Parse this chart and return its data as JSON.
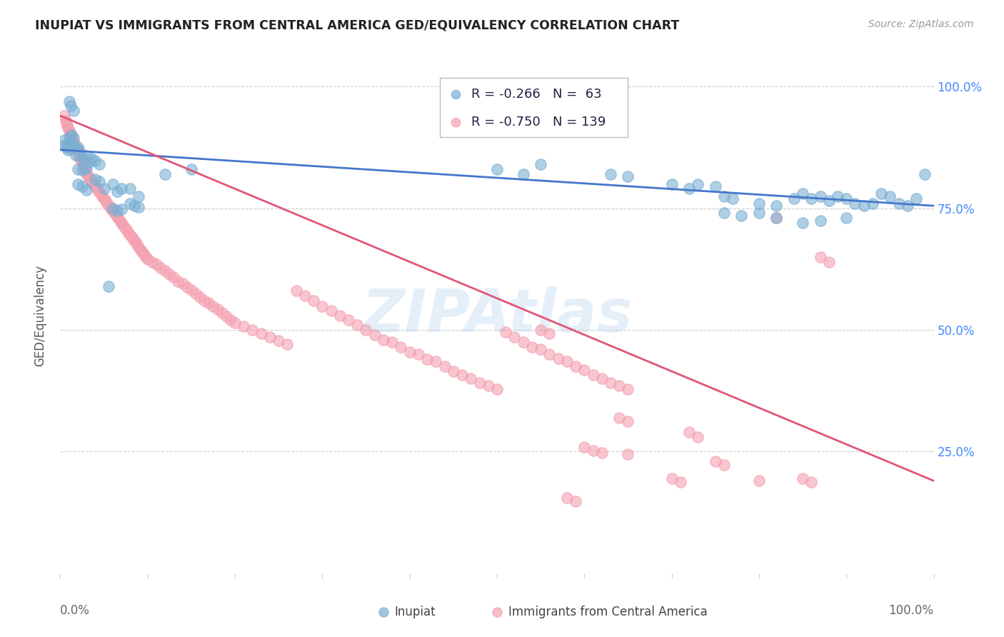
{
  "title": "INUPIAT VS IMMIGRANTS FROM CENTRAL AMERICA GED/EQUIVALENCY CORRELATION CHART",
  "source": "Source: ZipAtlas.com",
  "ylabel": "GED/Equivalency",
  "ytick_labels": [
    "100.0%",
    "75.0%",
    "50.0%",
    "25.0%"
  ],
  "ytick_positions": [
    1.0,
    0.75,
    0.5,
    0.25
  ],
  "legend_blue_R": "-0.266",
  "legend_blue_N": "63",
  "legend_pink_R": "-0.750",
  "legend_pink_N": "139",
  "blue_color": "#7bafd4",
  "pink_color": "#f4a0b0",
  "blue_line_color": "#4477cc",
  "pink_line_color": "#e05575",
  "watermark": "ZIPAtlas",
  "blue_scatter": [
    [
      0.01,
      0.97
    ],
    [
      0.012,
      0.96
    ],
    [
      0.015,
      0.95
    ],
    [
      0.005,
      0.89
    ],
    [
      0.008,
      0.88
    ],
    [
      0.01,
      0.895
    ],
    [
      0.013,
      0.9
    ],
    [
      0.015,
      0.895
    ],
    [
      0.005,
      0.88
    ],
    [
      0.007,
      0.875
    ],
    [
      0.009,
      0.87
    ],
    [
      0.011,
      0.872
    ],
    [
      0.014,
      0.88
    ],
    [
      0.016,
      0.878
    ],
    [
      0.018,
      0.86
    ],
    [
      0.02,
      0.875
    ],
    [
      0.022,
      0.868
    ],
    [
      0.025,
      0.855
    ],
    [
      0.027,
      0.85
    ],
    [
      0.03,
      0.858
    ],
    [
      0.033,
      0.845
    ],
    [
      0.036,
      0.852
    ],
    [
      0.04,
      0.848
    ],
    [
      0.045,
      0.84
    ],
    [
      0.02,
      0.83
    ],
    [
      0.025,
      0.828
    ],
    [
      0.03,
      0.832
    ],
    [
      0.02,
      0.8
    ],
    [
      0.025,
      0.795
    ],
    [
      0.03,
      0.788
    ],
    [
      0.04,
      0.81
    ],
    [
      0.045,
      0.805
    ],
    [
      0.05,
      0.79
    ],
    [
      0.06,
      0.8
    ],
    [
      0.065,
      0.785
    ],
    [
      0.07,
      0.79
    ],
    [
      0.08,
      0.79
    ],
    [
      0.09,
      0.775
    ],
    [
      0.12,
      0.82
    ],
    [
      0.15,
      0.83
    ],
    [
      0.06,
      0.75
    ],
    [
      0.065,
      0.745
    ],
    [
      0.07,
      0.748
    ],
    [
      0.08,
      0.76
    ],
    [
      0.085,
      0.755
    ],
    [
      0.09,
      0.752
    ],
    [
      0.055,
      0.59
    ],
    [
      0.5,
      0.83
    ],
    [
      0.53,
      0.82
    ],
    [
      0.55,
      0.84
    ],
    [
      0.63,
      0.82
    ],
    [
      0.65,
      0.815
    ],
    [
      0.7,
      0.8
    ],
    [
      0.72,
      0.79
    ],
    [
      0.73,
      0.8
    ],
    [
      0.75,
      0.795
    ],
    [
      0.76,
      0.775
    ],
    [
      0.77,
      0.77
    ],
    [
      0.8,
      0.76
    ],
    [
      0.82,
      0.755
    ],
    [
      0.84,
      0.77
    ],
    [
      0.85,
      0.78
    ],
    [
      0.86,
      0.77
    ],
    [
      0.87,
      0.775
    ],
    [
      0.88,
      0.765
    ],
    [
      0.89,
      0.775
    ],
    [
      0.9,
      0.77
    ],
    [
      0.91,
      0.76
    ],
    [
      0.92,
      0.755
    ],
    [
      0.93,
      0.76
    ],
    [
      0.94,
      0.78
    ],
    [
      0.95,
      0.775
    ],
    [
      0.96,
      0.76
    ],
    [
      0.97,
      0.755
    ],
    [
      0.98,
      0.77
    ],
    [
      0.99,
      0.82
    ],
    [
      0.76,
      0.74
    ],
    [
      0.78,
      0.735
    ],
    [
      0.8,
      0.74
    ],
    [
      0.82,
      0.73
    ],
    [
      0.85,
      0.72
    ],
    [
      0.87,
      0.725
    ],
    [
      0.9,
      0.73
    ]
  ],
  "pink_scatter": [
    [
      0.005,
      0.94
    ],
    [
      0.006,
      0.93
    ],
    [
      0.007,
      0.925
    ],
    [
      0.008,
      0.92
    ],
    [
      0.009,
      0.915
    ],
    [
      0.01,
      0.91
    ],
    [
      0.011,
      0.905
    ],
    [
      0.012,
      0.9
    ],
    [
      0.013,
      0.895
    ],
    [
      0.014,
      0.89
    ],
    [
      0.015,
      0.888
    ],
    [
      0.016,
      0.882
    ],
    [
      0.017,
      0.878
    ],
    [
      0.018,
      0.872
    ],
    [
      0.019,
      0.868
    ],
    [
      0.02,
      0.865
    ],
    [
      0.021,
      0.858
    ],
    [
      0.022,
      0.855
    ],
    [
      0.023,
      0.852
    ],
    [
      0.024,
      0.848
    ],
    [
      0.025,
      0.845
    ],
    [
      0.026,
      0.84
    ],
    [
      0.027,
      0.835
    ],
    [
      0.028,
      0.83
    ],
    [
      0.029,
      0.825
    ],
    [
      0.03,
      0.82
    ],
    [
      0.032,
      0.815
    ],
    [
      0.034,
      0.81
    ],
    [
      0.036,
      0.805
    ],
    [
      0.038,
      0.8
    ],
    [
      0.04,
      0.795
    ],
    [
      0.042,
      0.79
    ],
    [
      0.044,
      0.785
    ],
    [
      0.046,
      0.78
    ],
    [
      0.048,
      0.775
    ],
    [
      0.05,
      0.77
    ],
    [
      0.052,
      0.765
    ],
    [
      0.054,
      0.76
    ],
    [
      0.056,
      0.755
    ],
    [
      0.058,
      0.75
    ],
    [
      0.06,
      0.745
    ],
    [
      0.062,
      0.74
    ],
    [
      0.064,
      0.735
    ],
    [
      0.066,
      0.73
    ],
    [
      0.068,
      0.725
    ],
    [
      0.07,
      0.72
    ],
    [
      0.072,
      0.715
    ],
    [
      0.074,
      0.71
    ],
    [
      0.076,
      0.705
    ],
    [
      0.078,
      0.7
    ],
    [
      0.08,
      0.695
    ],
    [
      0.082,
      0.69
    ],
    [
      0.084,
      0.685
    ],
    [
      0.086,
      0.68
    ],
    [
      0.088,
      0.675
    ],
    [
      0.09,
      0.67
    ],
    [
      0.092,
      0.665
    ],
    [
      0.094,
      0.66
    ],
    [
      0.096,
      0.655
    ],
    [
      0.098,
      0.65
    ],
    [
      0.1,
      0.645
    ],
    [
      0.105,
      0.64
    ],
    [
      0.11,
      0.635
    ],
    [
      0.115,
      0.628
    ],
    [
      0.12,
      0.622
    ],
    [
      0.125,
      0.615
    ],
    [
      0.13,
      0.608
    ],
    [
      0.135,
      0.6
    ],
    [
      0.14,
      0.595
    ],
    [
      0.145,
      0.588
    ],
    [
      0.15,
      0.582
    ],
    [
      0.155,
      0.575
    ],
    [
      0.16,
      0.568
    ],
    [
      0.165,
      0.56
    ],
    [
      0.17,
      0.555
    ],
    [
      0.175,
      0.548
    ],
    [
      0.18,
      0.542
    ],
    [
      0.185,
      0.535
    ],
    [
      0.19,
      0.528
    ],
    [
      0.195,
      0.52
    ],
    [
      0.2,
      0.515
    ],
    [
      0.21,
      0.508
    ],
    [
      0.22,
      0.5
    ],
    [
      0.23,
      0.492
    ],
    [
      0.24,
      0.485
    ],
    [
      0.25,
      0.478
    ],
    [
      0.26,
      0.47
    ],
    [
      0.27,
      0.58
    ],
    [
      0.28,
      0.57
    ],
    [
      0.29,
      0.56
    ],
    [
      0.3,
      0.548
    ],
    [
      0.31,
      0.54
    ],
    [
      0.32,
      0.53
    ],
    [
      0.33,
      0.52
    ],
    [
      0.34,
      0.51
    ],
    [
      0.35,
      0.5
    ],
    [
      0.36,
      0.49
    ],
    [
      0.37,
      0.48
    ],
    [
      0.38,
      0.475
    ],
    [
      0.39,
      0.465
    ],
    [
      0.4,
      0.455
    ],
    [
      0.41,
      0.45
    ],
    [
      0.42,
      0.44
    ],
    [
      0.43,
      0.435
    ],
    [
      0.44,
      0.425
    ],
    [
      0.45,
      0.415
    ],
    [
      0.46,
      0.408
    ],
    [
      0.47,
      0.4
    ],
    [
      0.48,
      0.392
    ],
    [
      0.49,
      0.385
    ],
    [
      0.5,
      0.378
    ],
    [
      0.51,
      0.495
    ],
    [
      0.52,
      0.485
    ],
    [
      0.53,
      0.475
    ],
    [
      0.54,
      0.465
    ],
    [
      0.55,
      0.46
    ],
    [
      0.56,
      0.45
    ],
    [
      0.57,
      0.442
    ],
    [
      0.58,
      0.435
    ],
    [
      0.59,
      0.425
    ],
    [
      0.6,
      0.418
    ],
    [
      0.61,
      0.408
    ],
    [
      0.62,
      0.4
    ],
    [
      0.63,
      0.392
    ],
    [
      0.64,
      0.385
    ],
    [
      0.65,
      0.378
    ],
    [
      0.64,
      0.32
    ],
    [
      0.65,
      0.312
    ],
    [
      0.55,
      0.5
    ],
    [
      0.56,
      0.492
    ],
    [
      0.72,
      0.29
    ],
    [
      0.73,
      0.28
    ],
    [
      0.82,
      0.73
    ],
    [
      0.7,
      0.195
    ],
    [
      0.71,
      0.188
    ],
    [
      0.75,
      0.23
    ],
    [
      0.76,
      0.222
    ],
    [
      0.8,
      0.19
    ],
    [
      0.85,
      0.195
    ],
    [
      0.86,
      0.188
    ],
    [
      0.87,
      0.65
    ],
    [
      0.88,
      0.64
    ],
    [
      0.6,
      0.26
    ],
    [
      0.61,
      0.252
    ],
    [
      0.62,
      0.248
    ],
    [
      0.65,
      0.245
    ],
    [
      0.58,
      0.155
    ],
    [
      0.59,
      0.148
    ]
  ],
  "blue_line": {
    "x0": 0.0,
    "y0": 0.87,
    "x1": 1.0,
    "y1": 0.755
  },
  "pink_line": {
    "x0": 0.0,
    "y0": 0.94,
    "x1": 1.0,
    "y1": 0.19
  },
  "xlim": [
    0.0,
    1.0
  ],
  "ylim": [
    0.0,
    1.06
  ]
}
